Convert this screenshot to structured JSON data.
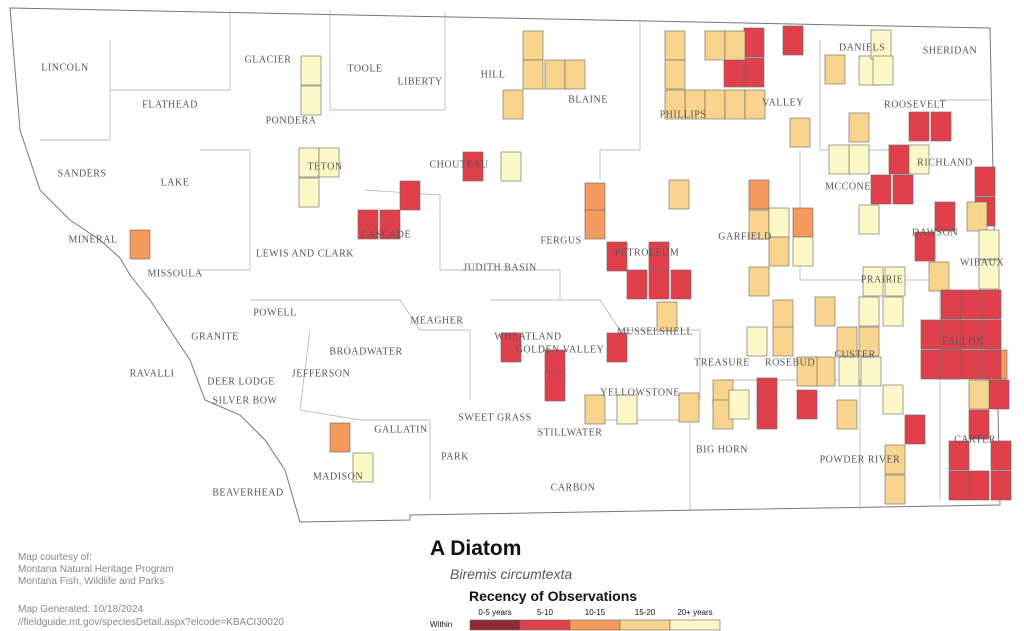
{
  "map": {
    "counties": [
      "LINCOLN",
      "FLATHEAD",
      "GLACIER",
      "TOOLE",
      "LIBERTY",
      "HILL",
      "BLAINE",
      "PHILLIPS",
      "VALLEY",
      "DANIELS",
      "SHERIDAN",
      "ROOSEVELT",
      "RICHLAND",
      "SANDERS",
      "LAKE",
      "PONDERA",
      "TETON",
      "CHOUTEAU",
      "MCCONE",
      "MINERAL",
      "CASCADE",
      "FERGUS",
      "PETROLEUM",
      "GARFIELD",
      "DAWSON",
      "WIBAUX",
      "MISSOULA",
      "LEWIS AND CLARK",
      "JUDITH BASIN",
      "PRAIRIE",
      "POWELL",
      "MEAGHER",
      "MUSSELSHELL",
      "WHEATLAND",
      "GOLDEN VALLEY",
      "GRANITE",
      "BROADWATER",
      "FALLON",
      "RAVALLI",
      "DEER LODGE",
      "JEFFERSON",
      "SILVER BOW",
      "TREASURE",
      "ROSEBUD",
      "CUSTER",
      "YELLOWSTONE",
      "SWEET GRASS",
      "STILLWATER",
      "GALLATIN",
      "PARK",
      "BIG HORN",
      "POWDER RIVER",
      "CARTER",
      "MADISON",
      "CARBON",
      "BEAVERHEAD"
    ],
    "title": "A Diatom",
    "subtitle": "Biremis circumtexta",
    "legend": {
      "title": "Recency of Observations",
      "within": "Within",
      "items": [
        {
          "label": "0-5 years",
          "color": "#8e2a36"
        },
        {
          "label": "5-10",
          "color": "#e0404c"
        },
        {
          "label": "10-15",
          "color": "#f49a5c"
        },
        {
          "label": "15-20",
          "color": "#f8d48f"
        },
        {
          "label": "20+ years",
          "color": "#fdf8c8"
        }
      ]
    },
    "credits": [
      "Map courtesy of:",
      "Montana Natural Heritage Program",
      "Montana Fish, Wildlife and Parks"
    ],
    "generated": "Map Generated: 10/18/2024",
    "url": "//fieldguide.mt.gov/speciesDetail.aspx?elcode=KBACI30020"
  }
}
